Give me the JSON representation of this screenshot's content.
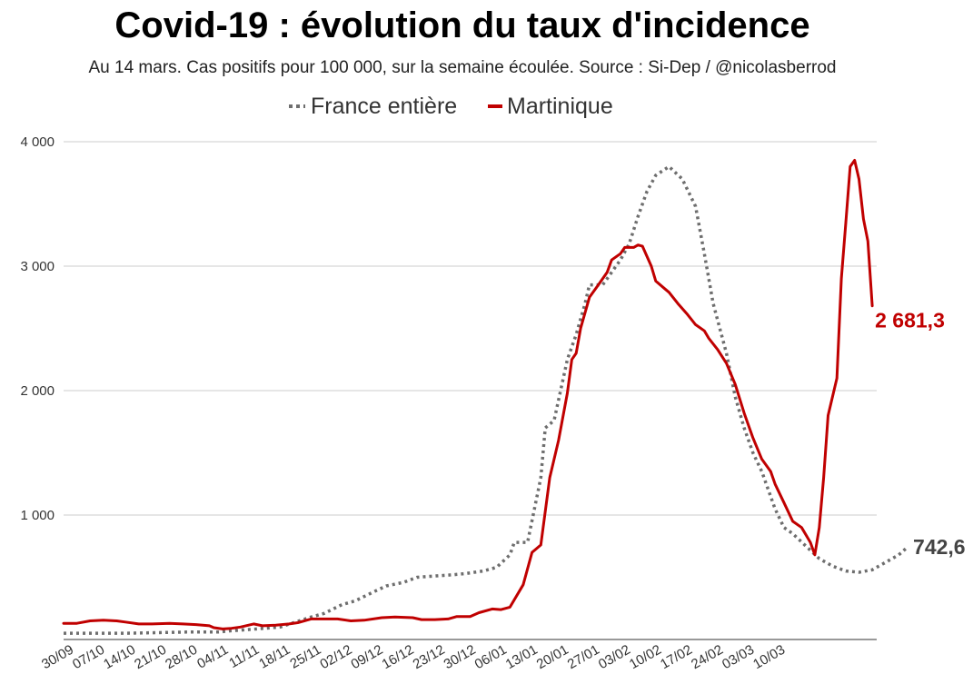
{
  "chart_data": {
    "type": "line",
    "title": "Covid-19 : évolution du taux d'incidence",
    "subtitle": "Au 14 mars. Cas positifs pour 100 000, sur la semaine écoulée. Source : Si-Dep / @nicolasberrod",
    "xlabel": "",
    "ylabel": "",
    "ylim": [
      0,
      4000
    ],
    "y_ticks": [
      1000,
      2000,
      3000,
      4000
    ],
    "y_tick_labels": [
      "1 000",
      "2 000",
      "3 000",
      "4 000"
    ],
    "x_tick_labels": [
      "30/09",
      "07/10",
      "14/10",
      "21/10",
      "28/10",
      "04/11",
      "11/11",
      "18/11",
      "25/11",
      "02/12",
      "09/12",
      "16/12",
      "23/12",
      "30/12",
      "06/01",
      "13/01",
      "20/01",
      "27/01",
      "03/02",
      "10/02",
      "17/02",
      "24/02",
      "03/03",
      "10/03"
    ],
    "grid": "horizontal",
    "legend_position": "top-center",
    "series": [
      {
        "name": "France entière",
        "style": "dotted",
        "color": "#6e6e6e",
        "end_label": "742,6",
        "values": [
          [
            0,
            50
          ],
          [
            7,
            50
          ],
          [
            14,
            50
          ],
          [
            21,
            55
          ],
          [
            28,
            60
          ],
          [
            35,
            60
          ],
          [
            38,
            70
          ],
          [
            42,
            80
          ],
          [
            49,
            100
          ],
          [
            56,
            180
          ],
          [
            59,
            210
          ],
          [
            63,
            280
          ],
          [
            66,
            310
          ],
          [
            70,
            380
          ],
          [
            73,
            430
          ],
          [
            77,
            460
          ],
          [
            80,
            500
          ],
          [
            84,
            510
          ],
          [
            88,
            520
          ],
          [
            91,
            530
          ],
          [
            95,
            550
          ],
          [
            98,
            580
          ],
          [
            101,
            680
          ],
          [
            102,
            780
          ],
          [
            105,
            780
          ],
          [
            108,
            1300
          ],
          [
            109,
            1700
          ],
          [
            111,
            1760
          ],
          [
            114,
            2250
          ],
          [
            116,
            2450
          ],
          [
            118,
            2700
          ],
          [
            119,
            2850
          ],
          [
            122,
            2850
          ],
          [
            124,
            2950
          ],
          [
            126,
            3050
          ],
          [
            128,
            3180
          ],
          [
            130,
            3400
          ],
          [
            132,
            3600
          ],
          [
            134,
            3730
          ],
          [
            137,
            3800
          ],
          [
            140,
            3700
          ],
          [
            143,
            3480
          ],
          [
            145,
            3100
          ],
          [
            147,
            2700
          ],
          [
            150,
            2300
          ],
          [
            152,
            1950
          ],
          [
            154,
            1700
          ],
          [
            156,
            1500
          ],
          [
            158,
            1350
          ],
          [
            161,
            1050
          ],
          [
            163,
            900
          ],
          [
            165,
            850
          ],
          [
            168,
            750
          ],
          [
            171,
            650
          ],
          [
            174,
            590
          ],
          [
            177,
            550
          ],
          [
            180,
            540
          ],
          [
            183,
            560
          ],
          [
            186,
            620
          ],
          [
            189,
            680
          ],
          [
            191,
            743
          ]
        ]
      },
      {
        "name": "Martinique",
        "style": "solid",
        "color": "#c00000",
        "end_label": "2 681,3",
        "values": [
          [
            0,
            130
          ],
          [
            3,
            130
          ],
          [
            6,
            150
          ],
          [
            9,
            155
          ],
          [
            12,
            150
          ],
          [
            14,
            140
          ],
          [
            17,
            125
          ],
          [
            20,
            125
          ],
          [
            24,
            130
          ],
          [
            27,
            125
          ],
          [
            30,
            120
          ],
          [
            33,
            110
          ],
          [
            34,
            95
          ],
          [
            36,
            85
          ],
          [
            38,
            90
          ],
          [
            40,
            100
          ],
          [
            43,
            125
          ],
          [
            45,
            110
          ],
          [
            48,
            115
          ],
          [
            51,
            125
          ],
          [
            53,
            135
          ],
          [
            56,
            165
          ],
          [
            59,
            165
          ],
          [
            62,
            165
          ],
          [
            65,
            150
          ],
          [
            68,
            155
          ],
          [
            72,
            175
          ],
          [
            75,
            180
          ],
          [
            79,
            175
          ],
          [
            81,
            160
          ],
          [
            84,
            160
          ],
          [
            87,
            165
          ],
          [
            89,
            185
          ],
          [
            92,
            185
          ],
          [
            94,
            215
          ],
          [
            97,
            245
          ],
          [
            99,
            240
          ],
          [
            101,
            260
          ],
          [
            104,
            440
          ],
          [
            106,
            700
          ],
          [
            107,
            730
          ],
          [
            108,
            760
          ],
          [
            110,
            1300
          ],
          [
            112,
            1600
          ],
          [
            114,
            1980
          ],
          [
            115,
            2250
          ],
          [
            116,
            2300
          ],
          [
            117,
            2500
          ],
          [
            119,
            2750
          ],
          [
            121,
            2850
          ],
          [
            123,
            2950
          ],
          [
            124,
            3050
          ],
          [
            126,
            3100
          ],
          [
            127,
            3150
          ],
          [
            129,
            3150
          ],
          [
            130,
            3170
          ],
          [
            131,
            3160
          ],
          [
            133,
            3000
          ],
          [
            134,
            2880
          ],
          [
            136,
            2820
          ],
          [
            137,
            2790
          ],
          [
            139,
            2700
          ],
          [
            141,
            2620
          ],
          [
            143,
            2530
          ],
          [
            145,
            2480
          ],
          [
            146,
            2420
          ],
          [
            148,
            2330
          ],
          [
            150,
            2220
          ],
          [
            152,
            2050
          ],
          [
            154,
            1820
          ],
          [
            156,
            1620
          ],
          [
            158,
            1450
          ],
          [
            160,
            1350
          ],
          [
            161,
            1250
          ],
          [
            163,
            1100
          ],
          [
            165,
            950
          ],
          [
            167,
            900
          ],
          [
            169,
            780
          ],
          [
            170,
            680
          ],
          [
            171,
            900
          ],
          [
            172,
            1300
          ],
          [
            173,
            1800
          ],
          [
            175,
            2100
          ],
          [
            176,
            2900
          ],
          [
            177,
            3350
          ],
          [
            178,
            3800
          ],
          [
            179,
            3850
          ],
          [
            180,
            3700
          ],
          [
            181,
            3380
          ],
          [
            182,
            3200
          ],
          [
            183,
            2681
          ]
        ]
      }
    ]
  }
}
